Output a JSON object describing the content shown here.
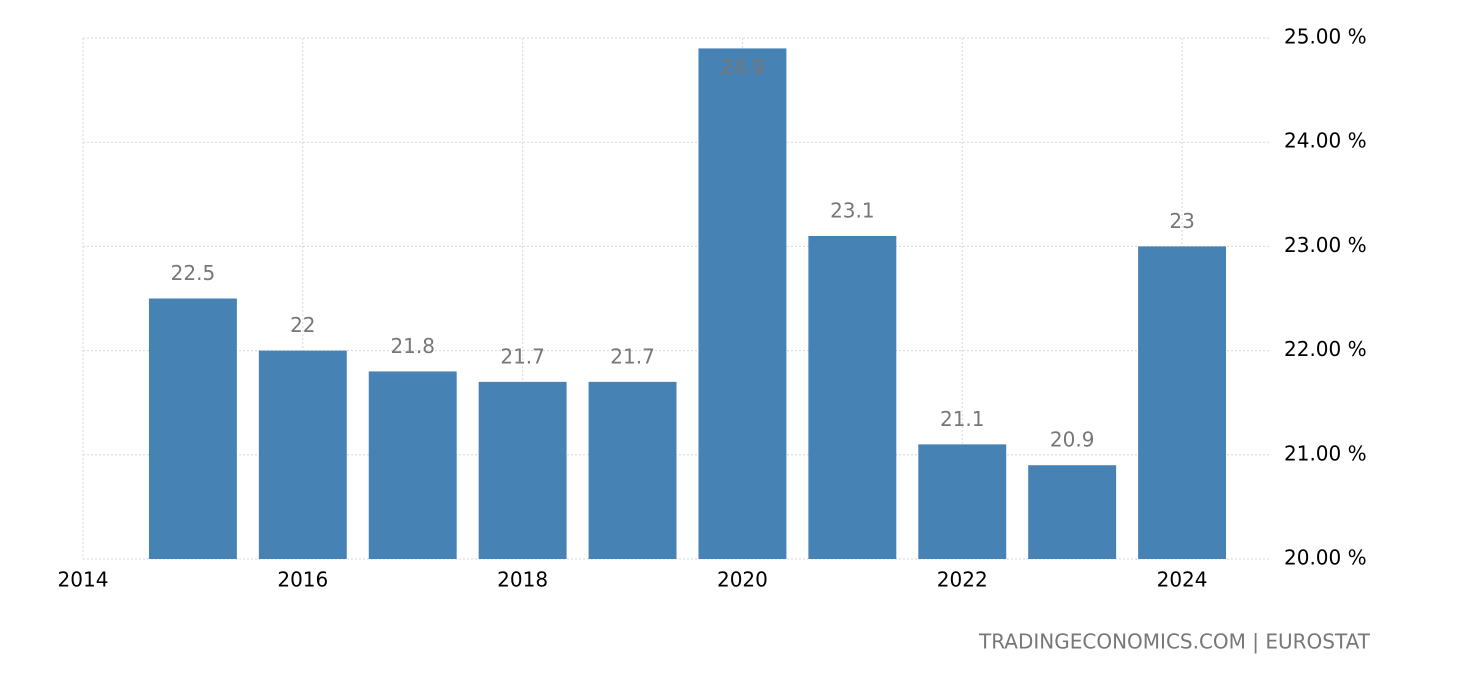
{
  "chart_data": {
    "type": "bar",
    "x": [
      2015,
      2016,
      2017,
      2018,
      2019,
      2020,
      2021,
      2022,
      2023,
      2024
    ],
    "values": [
      22.5,
      22,
      21.8,
      21.7,
      21.7,
      24.9,
      23.1,
      21.1,
      20.9,
      23
    ],
    "color": "#4682b4",
    "xlim": [
      2014,
      2024.8
    ],
    "xticks": [
      2014,
      2016,
      2018,
      2020,
      2022,
      2024
    ],
    "ylim": [
      20,
      25
    ],
    "yticks": [
      {
        "value": 20,
        "label": "20.00 %"
      },
      {
        "value": 21,
        "label": "21.00 %"
      },
      {
        "value": 22,
        "label": "22.00 %"
      },
      {
        "value": 23,
        "label": "23.00 %"
      },
      {
        "value": 24,
        "label": "24.00 %"
      },
      {
        "value": 25,
        "label": "25.00 %"
      }
    ],
    "grid": true,
    "source": "TRADINGECONOMICS.COM | EUROSTAT"
  }
}
